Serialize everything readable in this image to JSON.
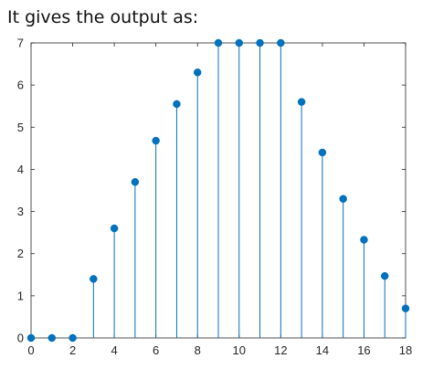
{
  "caption": "It gives the output as:",
  "chart_data": {
    "type": "stem",
    "x": [
      0,
      1,
      2,
      3,
      4,
      5,
      6,
      7,
      8,
      9,
      10,
      11,
      12,
      13,
      14,
      15,
      16,
      17,
      18
    ],
    "y": [
      0,
      0,
      0,
      1.4,
      2.6,
      3.7,
      4.68,
      5.55,
      6.3,
      7,
      7,
      7,
      7,
      5.6,
      4.4,
      3.3,
      2.33,
      1.47,
      0.7
    ],
    "xlim": [
      0,
      18
    ],
    "ylim": [
      0,
      7
    ],
    "xticks": [
      0,
      2,
      4,
      6,
      8,
      10,
      12,
      14,
      16,
      18
    ],
    "yticks": [
      0,
      1,
      2,
      3,
      4,
      5,
      6,
      7
    ],
    "grid": false,
    "color": "#0072bd"
  }
}
